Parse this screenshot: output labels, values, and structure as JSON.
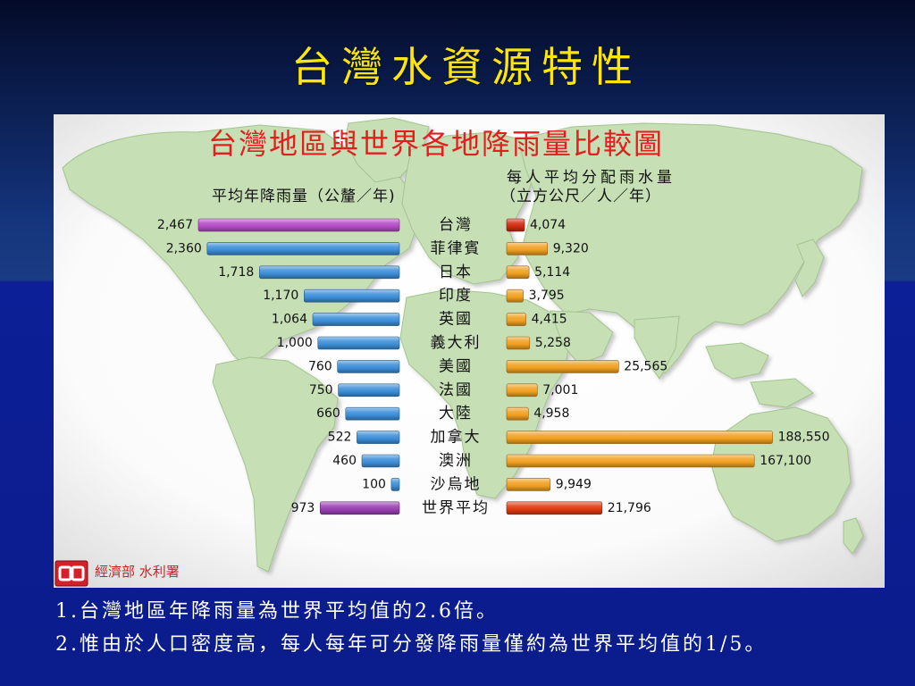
{
  "slide": {
    "title": "台灣水資源特性",
    "bullets": [
      "1.台灣地區年降雨量為世界平均值的2.6倍。",
      "2.惟由於人口密度高，每人每年可分發降雨量僅約為世界平均值的1/5。"
    ],
    "colors": {
      "title": "#ffe60a",
      "background": "#0b1c8c",
      "text": "#ffffff"
    }
  },
  "figure": {
    "source": "經濟部 水利署",
    "logo_icon": "agency-logo-icon"
  },
  "chart_data": {
    "type": "bar",
    "orientation": "horizontal",
    "title": "台灣地區與世界各地降雨量比較圖",
    "title_color": "#e41e1e",
    "categories": [
      "台灣",
      "菲律賓",
      "日本",
      "印度",
      "英國",
      "義大利",
      "美國",
      "法國",
      "大陸",
      "加拿大",
      "澳洲",
      "沙烏地",
      "世界平均"
    ],
    "series": [
      {
        "name": "平均年降雨量（公釐／年)",
        "values": [
          2467,
          2360,
          1718,
          1170,
          1064,
          1000,
          760,
          750,
          660,
          522,
          460,
          100,
          973
        ],
        "data_labels": [
          "2,467",
          "2,360",
          "1,718",
          "1,170",
          "1,064",
          "1,000",
          "760",
          "750",
          "660",
          "522",
          "460",
          "100",
          "973"
        ],
        "color": "#3d8fd8",
        "highlight_colors": {
          "台灣": "#b44cc6",
          "世界平均": "#9a40b4"
        }
      },
      {
        "name": "每人平均分配雨水量",
        "unit": "（立方公尺／人／年）",
        "values": [
          4074,
          9320,
          5114,
          3795,
          4415,
          5258,
          25565,
          7001,
          4958,
          188550,
          167100,
          9949,
          21796
        ],
        "data_labels": [
          "4,074",
          "9,320",
          "5,114",
          "3,795",
          "4,415",
          "5,258",
          "25,565",
          "7,001",
          "4,958",
          "188,550",
          "167,100",
          "9,949",
          "21,796"
        ],
        "color": "#f0a020",
        "highlight_colors": {
          "台灣": "#d02a12",
          "世界平均": "#e03a10"
        }
      }
    ],
    "legend": "none",
    "grid": false,
    "backdrop": "world-map"
  }
}
